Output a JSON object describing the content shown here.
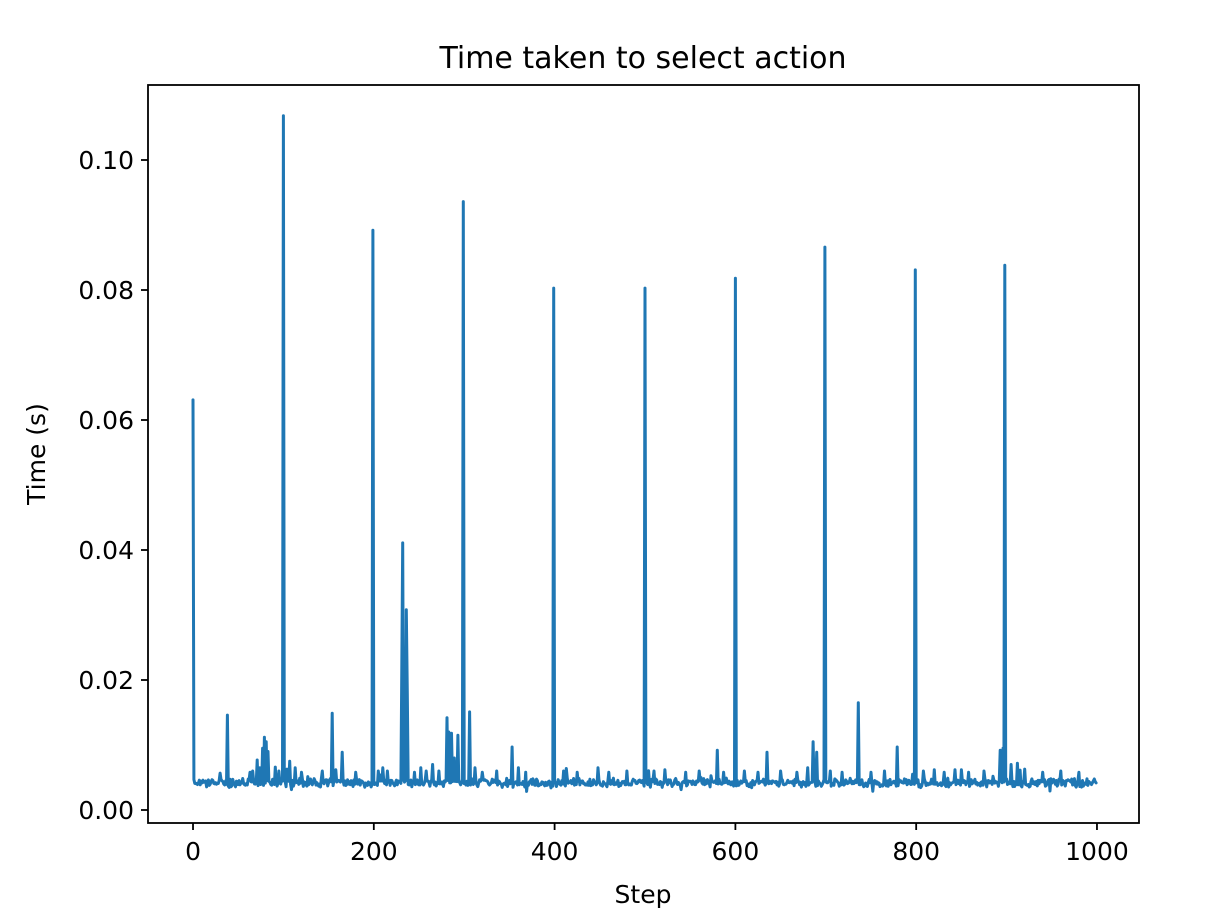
{
  "figure": {
    "background": "#ffffff",
    "axes_color": "#000000"
  },
  "chart_data": {
    "type": "line",
    "title": "Time taken to select action",
    "xlabel": "Step",
    "ylabel": "Time (s)",
    "line_color": "#1f77b4",
    "line_width": 3,
    "xlim": [
      -49.8,
      1046.5
    ],
    "ylim": [
      -0.002,
      0.11154
    ],
    "xticks": [
      0,
      200,
      400,
      600,
      800,
      1000
    ],
    "xtick_labels": [
      "0",
      "200",
      "400",
      "600",
      "800",
      "1000"
    ],
    "yticks": [
      0.0,
      0.02,
      0.04,
      0.06,
      0.08,
      0.1
    ],
    "ytick_labels": [
      "0.00",
      "0.02",
      "0.04",
      "0.06",
      "0.08",
      "0.10"
    ],
    "grid": false,
    "legend": null,
    "n_points": 1000,
    "baseline": {
      "mean": 0.0042,
      "noise_amplitude": 0.0008
    },
    "spikes": [
      [
        0,
        0.0631
      ],
      [
        38,
        0.0146
      ],
      [
        63,
        0.0058
      ],
      [
        66,
        0.006
      ],
      [
        71,
        0.0077
      ],
      [
        74,
        0.0065
      ],
      [
        77,
        0.0095
      ],
      [
        79,
        0.0112
      ],
      [
        81,
        0.0105
      ],
      [
        83,
        0.009
      ],
      [
        91,
        0.0066
      ],
      [
        95,
        0.006
      ],
      [
        100,
        0.1068
      ],
      [
        104,
        0.0063
      ],
      [
        107,
        0.0075
      ],
      [
        113,
        0.0065
      ],
      [
        120,
        0.0058
      ],
      [
        143,
        0.006
      ],
      [
        154,
        0.0149
      ],
      [
        158,
        0.0062
      ],
      [
        165,
        0.0089
      ],
      [
        180,
        0.0058
      ],
      [
        199,
        0.0892
      ],
      [
        205,
        0.006
      ],
      [
        210,
        0.0065
      ],
      [
        215,
        0.006
      ],
      [
        231,
        0.022
      ],
      [
        232,
        0.0411
      ],
      [
        236,
        0.0308
      ],
      [
        237,
        0.018
      ],
      [
        245,
        0.0058
      ],
      [
        252,
        0.0065
      ],
      [
        258,
        0.006
      ],
      [
        265,
        0.007
      ],
      [
        272,
        0.006
      ],
      [
        281,
        0.0142
      ],
      [
        283,
        0.012
      ],
      [
        286,
        0.0118
      ],
      [
        289,
        0.008
      ],
      [
        293,
        0.0115
      ],
      [
        299,
        0.0936
      ],
      [
        306,
        0.0151
      ],
      [
        312,
        0.0065
      ],
      [
        320,
        0.0058
      ],
      [
        336,
        0.006
      ],
      [
        353,
        0.0097
      ],
      [
        360,
        0.0065
      ],
      [
        368,
        0.0058
      ],
      [
        399,
        0.0803
      ],
      [
        410,
        0.006
      ],
      [
        425,
        0.0058
      ],
      [
        448,
        0.0065
      ],
      [
        460,
        0.0058
      ],
      [
        480,
        0.006
      ],
      [
        500,
        0.0803
      ],
      [
        510,
        0.006
      ],
      [
        522,
        0.0062
      ],
      [
        545,
        0.0058
      ],
      [
        560,
        0.006
      ],
      [
        580,
        0.0092
      ],
      [
        600,
        0.0818
      ],
      [
        610,
        0.006
      ],
      [
        625,
        0.0058
      ],
      [
        635,
        0.0089
      ],
      [
        650,
        0.006
      ],
      [
        668,
        0.0058
      ],
      [
        680,
        0.0065
      ],
      [
        686,
        0.0105
      ],
      [
        690,
        0.0089
      ],
      [
        699,
        0.0866
      ],
      [
        705,
        0.006
      ],
      [
        718,
        0.0058
      ],
      [
        736,
        0.0165
      ],
      [
        750,
        0.0058
      ],
      [
        765,
        0.006
      ],
      [
        779,
        0.0097
      ],
      [
        799,
        0.0831
      ],
      [
        808,
        0.006
      ],
      [
        820,
        0.0062
      ],
      [
        831,
        0.0058
      ],
      [
        843,
        0.0062
      ],
      [
        858,
        0.0058
      ],
      [
        875,
        0.006
      ],
      [
        893,
        0.0092
      ],
      [
        896,
        0.0095
      ],
      [
        898,
        0.0838
      ],
      [
        905,
        0.007
      ],
      [
        912,
        0.0072
      ],
      [
        920,
        0.0063
      ],
      [
        940,
        0.0058
      ],
      [
        960,
        0.006
      ],
      [
        980,
        0.0058
      ]
    ]
  }
}
